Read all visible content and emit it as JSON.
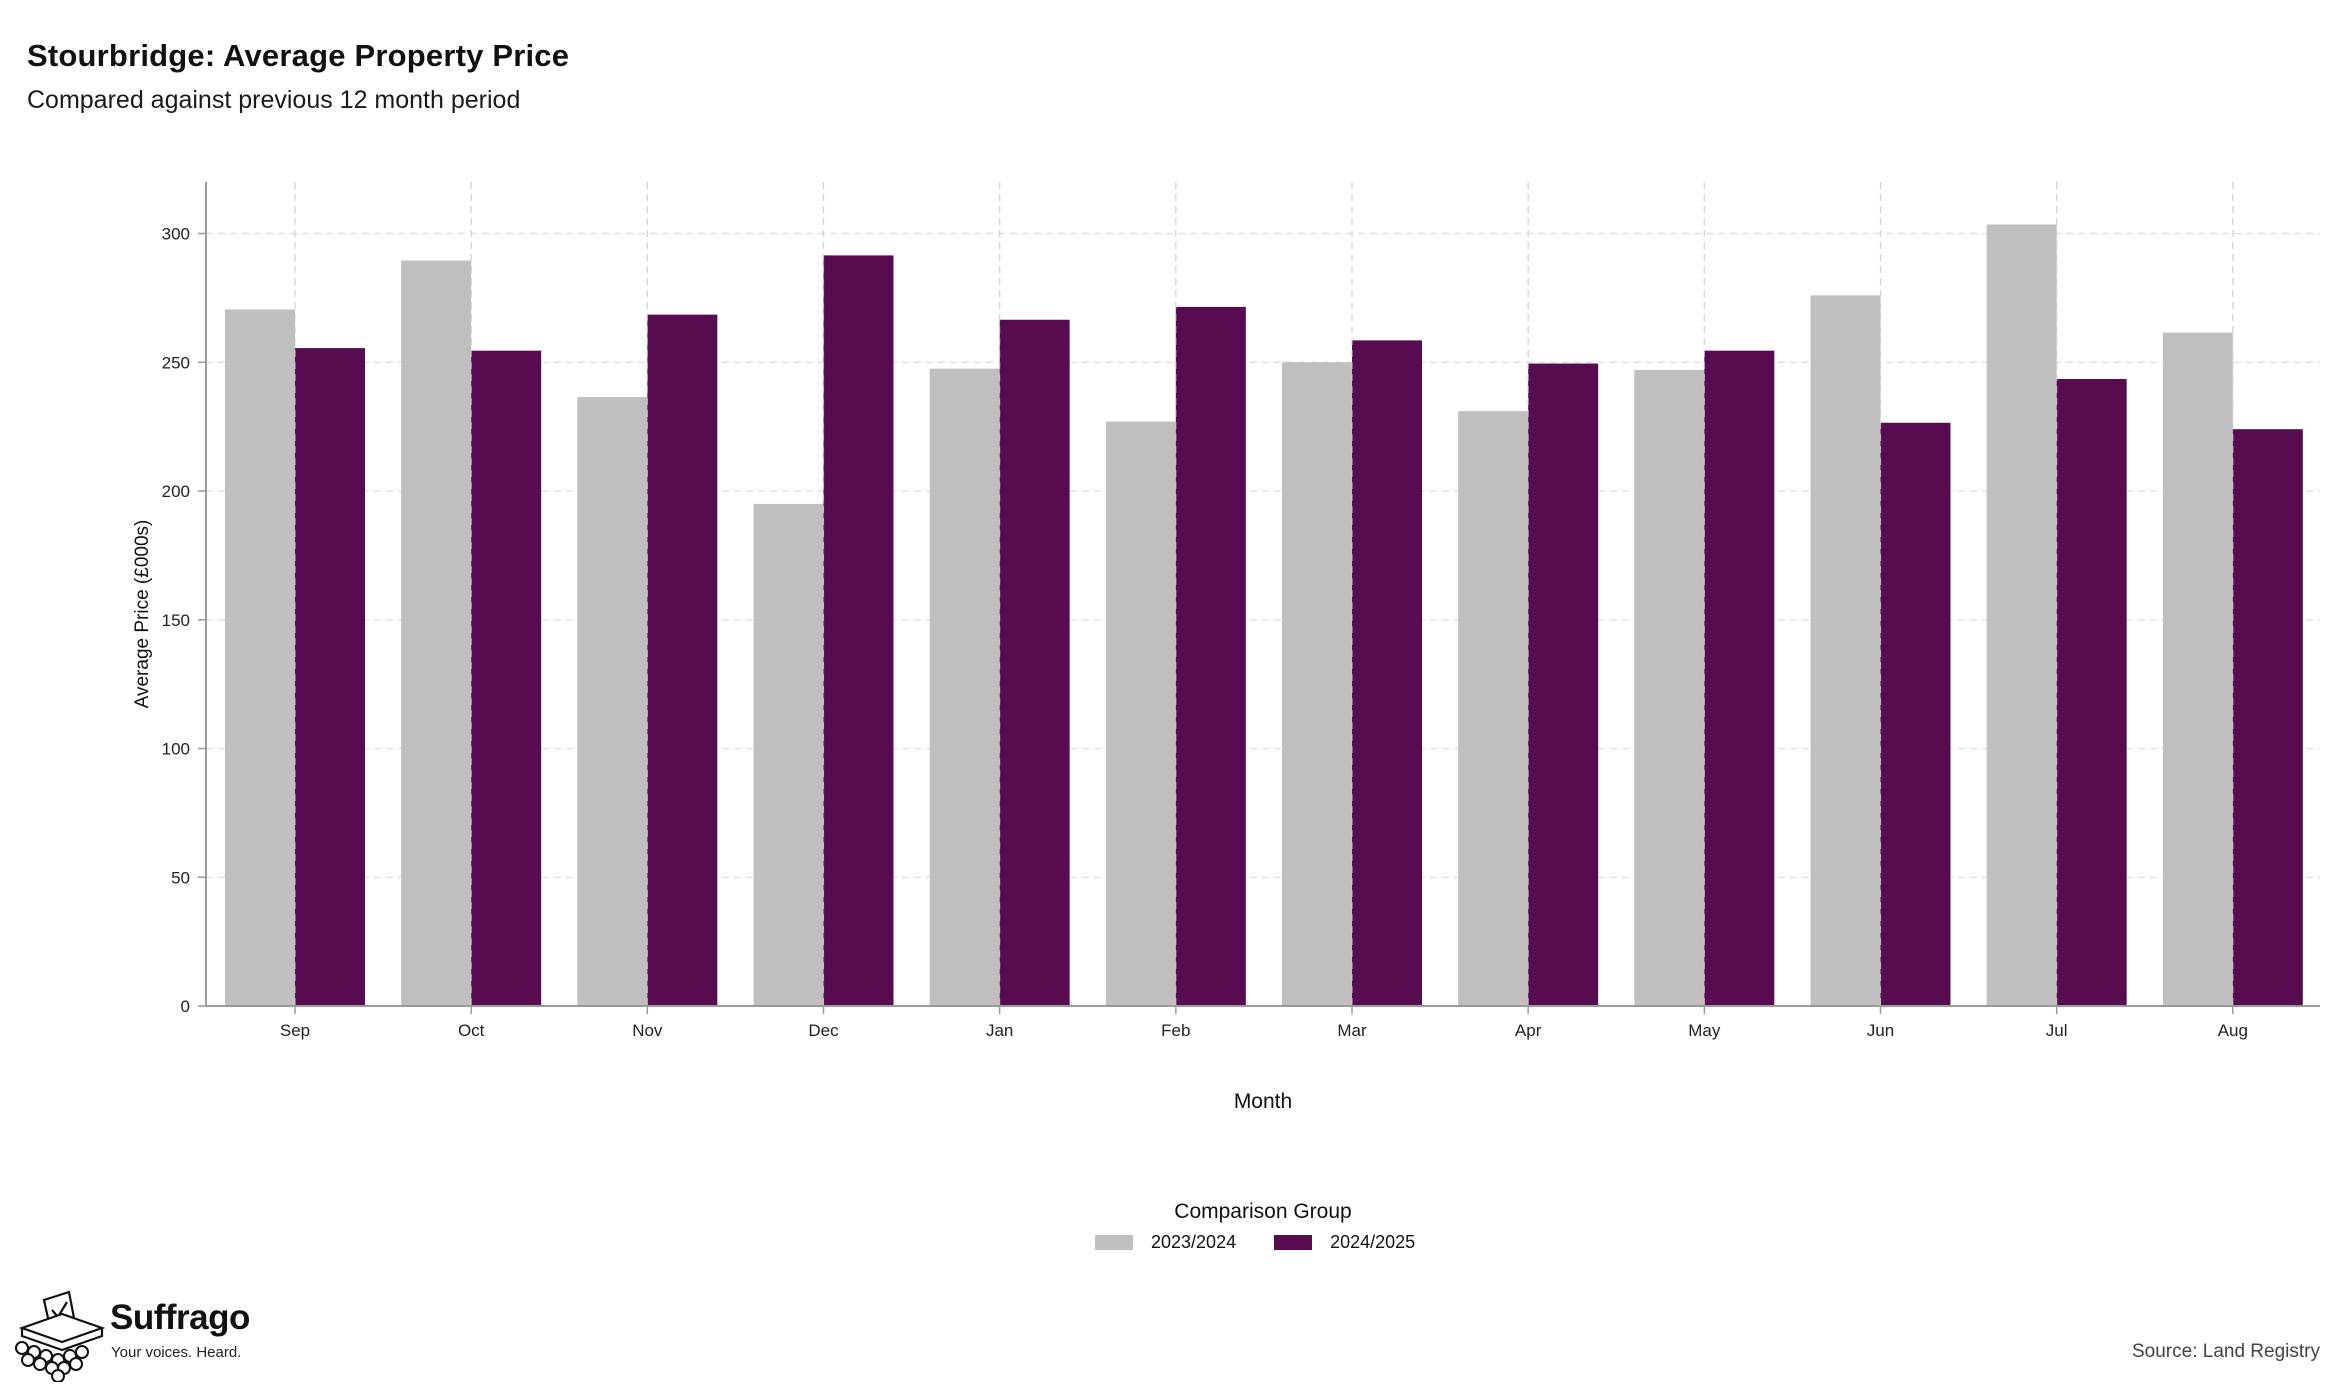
{
  "header": {
    "title": "Stourbridge: Average Property Price",
    "subtitle": "Compared against previous 12 month period"
  },
  "legend": {
    "title": "Comparison Group"
  },
  "brand": {
    "name": "Suffrago",
    "tagline": "Your voices. Heard."
  },
  "footer": {
    "source": "Source: Land Registry"
  },
  "chart_data": {
    "type": "bar",
    "xlabel": "Month",
    "ylabel": "Average Price (£000s)",
    "ylim": [
      0,
      320
    ],
    "yticks": [
      0,
      50,
      100,
      150,
      200,
      250,
      300
    ],
    "grid": true,
    "legend_position": "bottom",
    "categories": [
      "Sep",
      "Oct",
      "Nov",
      "Dec",
      "Jan",
      "Feb",
      "Mar",
      "Apr",
      "May",
      "Jun",
      "Jul",
      "Aug"
    ],
    "series": [
      {
        "name": "2023/2024",
        "color": "#bfbfbf",
        "values": [
          270.5,
          289.5,
          236.5,
          195,
          247.5,
          227,
          250,
          231,
          247,
          276,
          303.5,
          261.5
        ]
      },
      {
        "name": "2024/2025",
        "color": "#560c4f",
        "values": [
          255.5,
          254.5,
          268.5,
          291.5,
          266.5,
          271.5,
          258.5,
          249.5,
          254.5,
          226.5,
          243.5,
          224
        ]
      }
    ]
  }
}
